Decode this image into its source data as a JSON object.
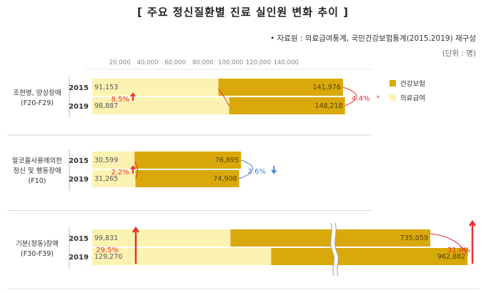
{
  "title": "[ 주요 정신질환별 진료 실인원 변화 추이 ]",
  "source": "• 자료원 : 의료급여통계, 국민건강보험통계(2015,2019) 재구성",
  "unit": "(단위 : 명)",
  "colors": {
    "health_insurance": "#D9A90C",
    "medical_aid": "#FCF3B2",
    "increase": "#E8312F",
    "decrease": "#4A7FD6"
  },
  "chart_data": {
    "type": "bar",
    "orientation": "horizontal",
    "stacked": true,
    "axis_ticks": [
      "20,000",
      "40,000",
      "60,000",
      "80,000",
      "100,000",
      "120,000",
      "140,000"
    ],
    "xlim": [
      0,
      160000
    ],
    "axis_break": true,
    "legend": {
      "position": "top-right",
      "items": [
        {
          "label": "건강보험",
          "color": "#D9A90C"
        },
        {
          "label": "의료급여",
          "color": "#FCF3B2"
        }
      ]
    },
    "groups": [
      {
        "label_lines": [
          "조현병, 망상장애",
          "(F20-F29)"
        ],
        "bars": [
          {
            "year": "2015",
            "medical_aid": 91153,
            "medical_aid_label": "91,153",
            "health_insurance": 141976,
            "health_insurance_label": "141,976"
          },
          {
            "year": "2019",
            "medical_aid": 98887,
            "medical_aid_label": "98,887",
            "health_insurance": 148218,
            "health_insurance_label": "148,218"
          }
        ],
        "changes": [
          {
            "series": "medical_aid",
            "text": "8.5%",
            "direction": "up"
          },
          {
            "series": "health_insurance",
            "text": "4.4%",
            "direction": "up"
          }
        ]
      },
      {
        "label_lines": [
          "알코올사용에의한",
          "정신 및 행동장애",
          "(F10)"
        ],
        "bars": [
          {
            "year": "2015",
            "medical_aid": 30599,
            "medical_aid_label": "30,599",
            "health_insurance": 76895,
            "health_insurance_label": "76,895"
          },
          {
            "year": "2019",
            "medical_aid": 31265,
            "medical_aid_label": "31,265",
            "health_insurance": 74908,
            "health_insurance_label": "74,908"
          }
        ],
        "changes": [
          {
            "series": "medical_aid",
            "text": "2.2%",
            "direction": "up"
          },
          {
            "series": "health_insurance",
            "text": "2.6%",
            "direction": "down"
          }
        ]
      },
      {
        "label_lines": [
          "기분(정동)장애",
          "(F30-F39)"
        ],
        "bars": [
          {
            "year": "2015",
            "medical_aid": 99831,
            "medical_aid_label": "99,831",
            "health_insurance": 735059,
            "health_insurance_label": "735,059"
          },
          {
            "year": "2019",
            "medical_aid": 129270,
            "medical_aid_label": "129,270",
            "health_insurance": 962882,
            "health_insurance_label": "962,882"
          }
        ],
        "changes": [
          {
            "series": "medical_aid",
            "text": "29.5%",
            "direction": "up"
          },
          {
            "series": "health_insurance",
            "text": "31.0%",
            "direction": "up"
          }
        ]
      }
    ]
  }
}
